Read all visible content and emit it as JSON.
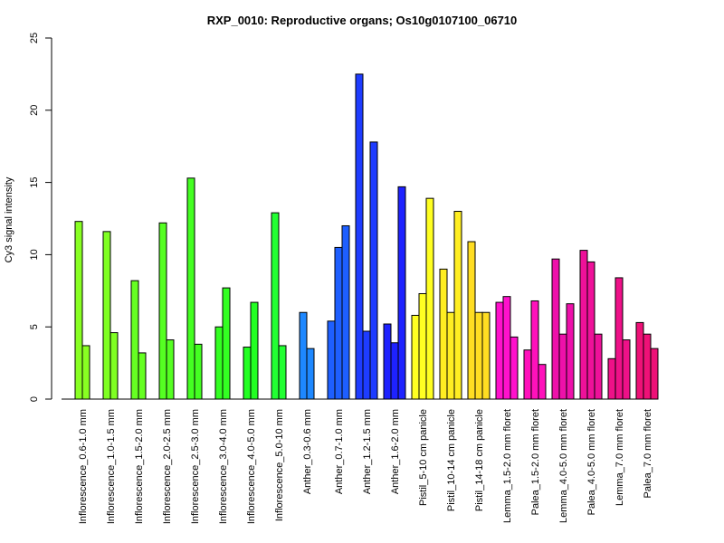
{
  "chart_data": {
    "type": "bar",
    "title": "RXP_0010: Reproductive organs; Os10g0107100_06710",
    "xlabel": "",
    "ylabel": "Cy3 signal intensity",
    "ylim": [
      0,
      25
    ],
    "yticks": [
      0,
      5,
      10,
      15,
      20,
      25
    ],
    "grid": false,
    "legend": "none",
    "groups": [
      {
        "label": "Inflorescence_0.6-1.0 mm",
        "color": "#88ff22",
        "values": [
          12.3,
          3.7
        ]
      },
      {
        "label": "Inflorescence_1.0-1.5 mm",
        "color": "#7fff22",
        "values": [
          11.6,
          4.6
        ]
      },
      {
        "label": "Inflorescence_1.5-2.0 mm",
        "color": "#66ff22",
        "values": [
          8.2,
          3.2
        ]
      },
      {
        "label": "Inflorescence_2.0-2.5 mm",
        "color": "#55ff22",
        "values": [
          12.2,
          4.1
        ]
      },
      {
        "label": "Inflorescence_2.5-3.0 mm",
        "color": "#44ff22",
        "values": [
          15.3,
          3.8
        ]
      },
      {
        "label": "Inflorescence_3.0-4.0 mm",
        "color": "#33ff22",
        "values": [
          5.0,
          7.7
        ]
      },
      {
        "label": "Inflorescence_4.0-5.0 mm",
        "color": "#22ff22",
        "values": [
          3.6,
          6.7
        ]
      },
      {
        "label": "Inflorescence_5.0-10 mm",
        "color": "#22ff33",
        "values": [
          12.9,
          3.7
        ]
      },
      {
        "label": "Anther_0.3-0.6 mm",
        "color": "#1e88ff",
        "values": [
          6.0,
          3.5
        ]
      },
      {
        "label": "Anther_0.7-1.0 mm",
        "color": "#1e5fff",
        "values": [
          5.4,
          10.5,
          12.0
        ]
      },
      {
        "label": "Anther_1.2-1.5 mm",
        "color": "#1e3cff",
        "values": [
          22.5,
          4.7,
          17.8
        ]
      },
      {
        "label": "Anther_1.6-2.0 mm",
        "color": "#1e22ff",
        "values": [
          5.2,
          3.9,
          14.7
        ]
      },
      {
        "label": "Pistil_5-10 cm panicle",
        "color": "#ffff22",
        "values": [
          5.8,
          7.3,
          13.9
        ]
      },
      {
        "label": "Pistil_10-14 cm panicle",
        "color": "#ffee22",
        "values": [
          9.0,
          6.0,
          13.0
        ]
      },
      {
        "label": "Pistil_14-18 cm panicle",
        "color": "#ffdd22",
        "values": [
          10.9,
          6.0,
          6.0
        ]
      },
      {
        "label": "Lemma_1.5-2.0 mm floret",
        "color": "#ff11cc",
        "values": [
          6.7,
          7.1,
          4.3
        ]
      },
      {
        "label": "Palea_1.5-2.0 mm floret",
        "color": "#ff11bb",
        "values": [
          3.4,
          6.8,
          2.4
        ]
      },
      {
        "label": "Lemma_4.0-5.0 mm floret",
        "color": "#ee11aa",
        "values": [
          9.7,
          4.5,
          6.6
        ]
      },
      {
        "label": "Palea_4.0-5.0 mm floret",
        "color": "#ee1199",
        "values": [
          10.3,
          9.5,
          4.5
        ]
      },
      {
        "label": "Lemma_7.0 mm floret",
        "color": "#ee1188",
        "values": [
          2.8,
          8.4,
          4.1
        ]
      },
      {
        "label": "Palea_7.0 mm floret",
        "color": "#ee1177",
        "values": [
          5.3,
          4.5,
          3.5
        ]
      }
    ]
  }
}
